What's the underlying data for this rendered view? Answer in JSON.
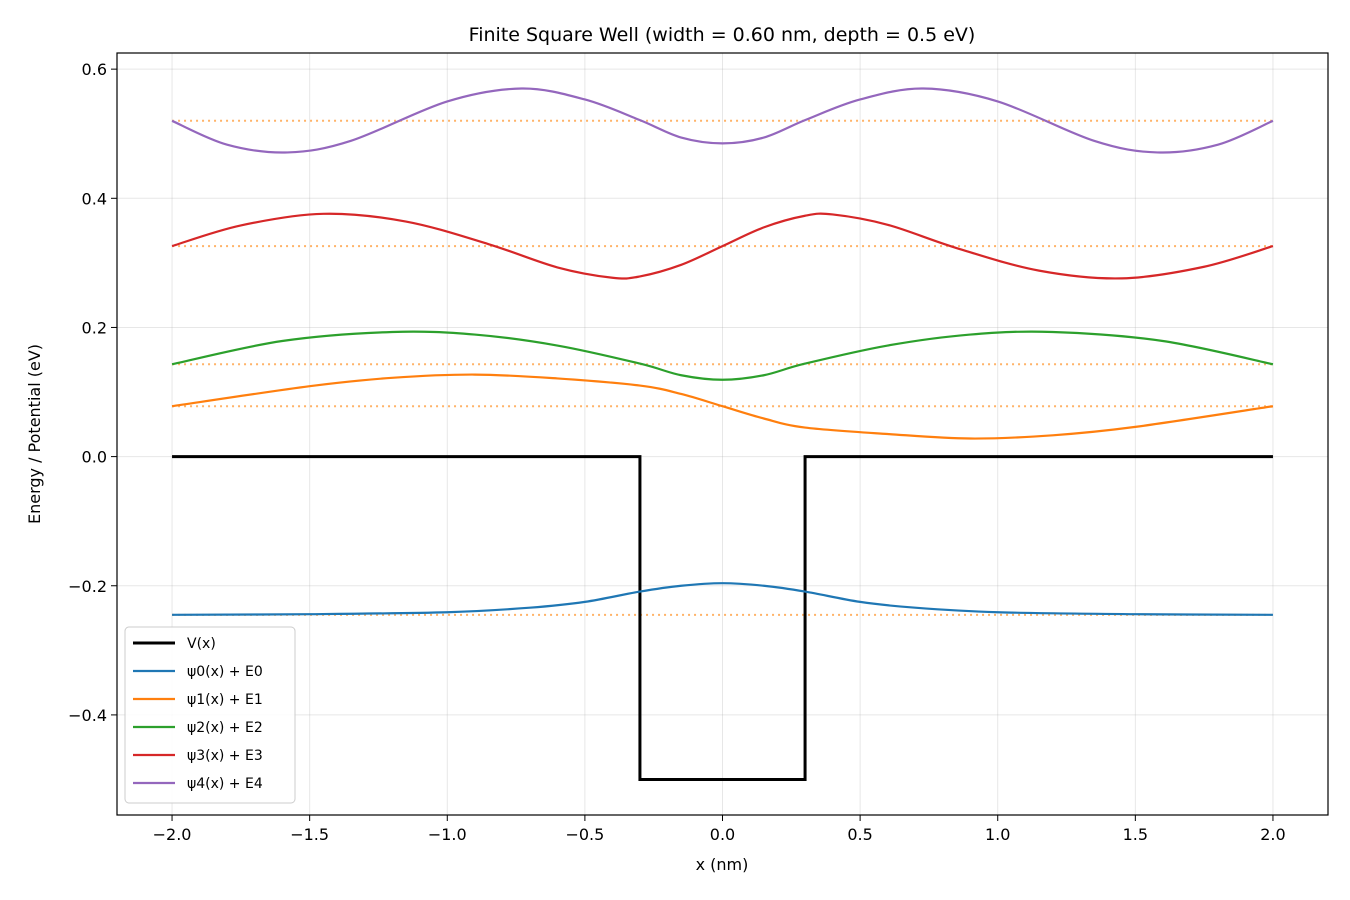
{
  "chart_data": {
    "type": "line",
    "title": "Finite Square Well (width = 0.60 nm, depth = 0.5 eV)",
    "xlabel": "x (nm)",
    "ylabel": "Energy / Potential (eV)",
    "xlim": [
      -2.2,
      2.2
    ],
    "ylim": [
      -0.555,
      0.625
    ],
    "xticks": [
      -2.0,
      -1.5,
      -1.0,
      -0.5,
      0.0,
      0.5,
      1.0,
      1.5,
      2.0
    ],
    "xtick_labels": [
      "−2.0",
      "−1.5",
      "−1.0",
      "−0.5",
      "0.0",
      "0.5",
      "1.0",
      "1.5",
      "2.0"
    ],
    "yticks": [
      -0.4,
      -0.2,
      0.0,
      0.2,
      0.4,
      0.6
    ],
    "ytick_labels": [
      "−0.4",
      "−0.2",
      "0.0",
      "0.2",
      "0.4",
      "0.6"
    ],
    "grid": true,
    "legend_position": "lower-left",
    "energy_levels": [
      -0.245,
      0.078,
      0.143,
      0.326,
      0.52
    ],
    "energy_level_color": "#ffa64d",
    "series": [
      {
        "name": "V(x)",
        "color": "#000000",
        "x": [
          -2.0,
          -0.3,
          -0.3,
          0.3,
          0.3,
          2.0
        ],
        "y": [
          0.0,
          0.0,
          -0.5,
          -0.5,
          0.0,
          0.0
        ]
      },
      {
        "name": "ψ0(x) + E0",
        "color": "#1f77b4",
        "x": [
          -2.0,
          -1.5,
          -1.0,
          -0.7,
          -0.5,
          -0.3,
          -0.15,
          0.0,
          0.15,
          0.3,
          0.5,
          0.7,
          1.0,
          1.5,
          2.0
        ],
        "y": [
          -0.245,
          -0.244,
          -0.241,
          -0.234,
          -0.225,
          -0.209,
          -0.2,
          -0.196,
          -0.2,
          -0.209,
          -0.225,
          -0.234,
          -0.241,
          -0.244,
          -0.245
        ]
      },
      {
        "name": "ψ1(x) + E1",
        "color": "#ff7f0e",
        "x": [
          -2.0,
          -1.5,
          -1.2,
          -0.9,
          -0.6,
          -0.3,
          -0.15,
          0.0,
          0.15,
          0.3,
          0.6,
          0.9,
          1.2,
          1.5,
          2.0
        ],
        "y": [
          0.078,
          0.109,
          0.122,
          0.127,
          0.121,
          0.11,
          0.097,
          0.078,
          0.059,
          0.045,
          0.035,
          0.028,
          0.033,
          0.046,
          0.078
        ]
      },
      {
        "name": "ψ2(x) + E2",
        "color": "#2ca02c",
        "x": [
          -2.0,
          -1.6,
          -1.2,
          -0.9,
          -0.6,
          -0.3,
          -0.15,
          0.0,
          0.15,
          0.3,
          0.6,
          0.9,
          1.2,
          1.6,
          2.0
        ],
        "y": [
          0.143,
          0.179,
          0.193,
          0.189,
          0.172,
          0.144,
          0.126,
          0.119,
          0.126,
          0.144,
          0.172,
          0.189,
          0.193,
          0.179,
          0.143
        ]
      },
      {
        "name": "ψ3(x) + E3",
        "color": "#d62728",
        "x": [
          -2.0,
          -1.75,
          -1.45,
          -1.15,
          -0.85,
          -0.6,
          -0.4,
          -0.3,
          -0.15,
          0.0,
          0.15,
          0.3,
          0.4,
          0.6,
          0.85,
          1.15,
          1.45,
          1.75,
          2.0
        ],
        "y": [
          0.326,
          0.358,
          0.376,
          0.364,
          0.329,
          0.293,
          0.277,
          0.279,
          0.297,
          0.326,
          0.355,
          0.373,
          0.375,
          0.359,
          0.323,
          0.288,
          0.276,
          0.294,
          0.326
        ]
      },
      {
        "name": "ψ4(x) + E4",
        "color": "#9467bd",
        "x": [
          -2.0,
          -1.8,
          -1.58,
          -1.35,
          -1.0,
          -0.73,
          -0.5,
          -0.3,
          -0.15,
          0.0,
          0.15,
          0.3,
          0.5,
          0.73,
          1.0,
          1.35,
          1.58,
          1.8,
          2.0
        ],
        "y": [
          0.52,
          0.483,
          0.471,
          0.489,
          0.55,
          0.57,
          0.553,
          0.521,
          0.494,
          0.485,
          0.494,
          0.521,
          0.553,
          0.57,
          0.55,
          0.489,
          0.471,
          0.483,
          0.52
        ]
      }
    ]
  }
}
